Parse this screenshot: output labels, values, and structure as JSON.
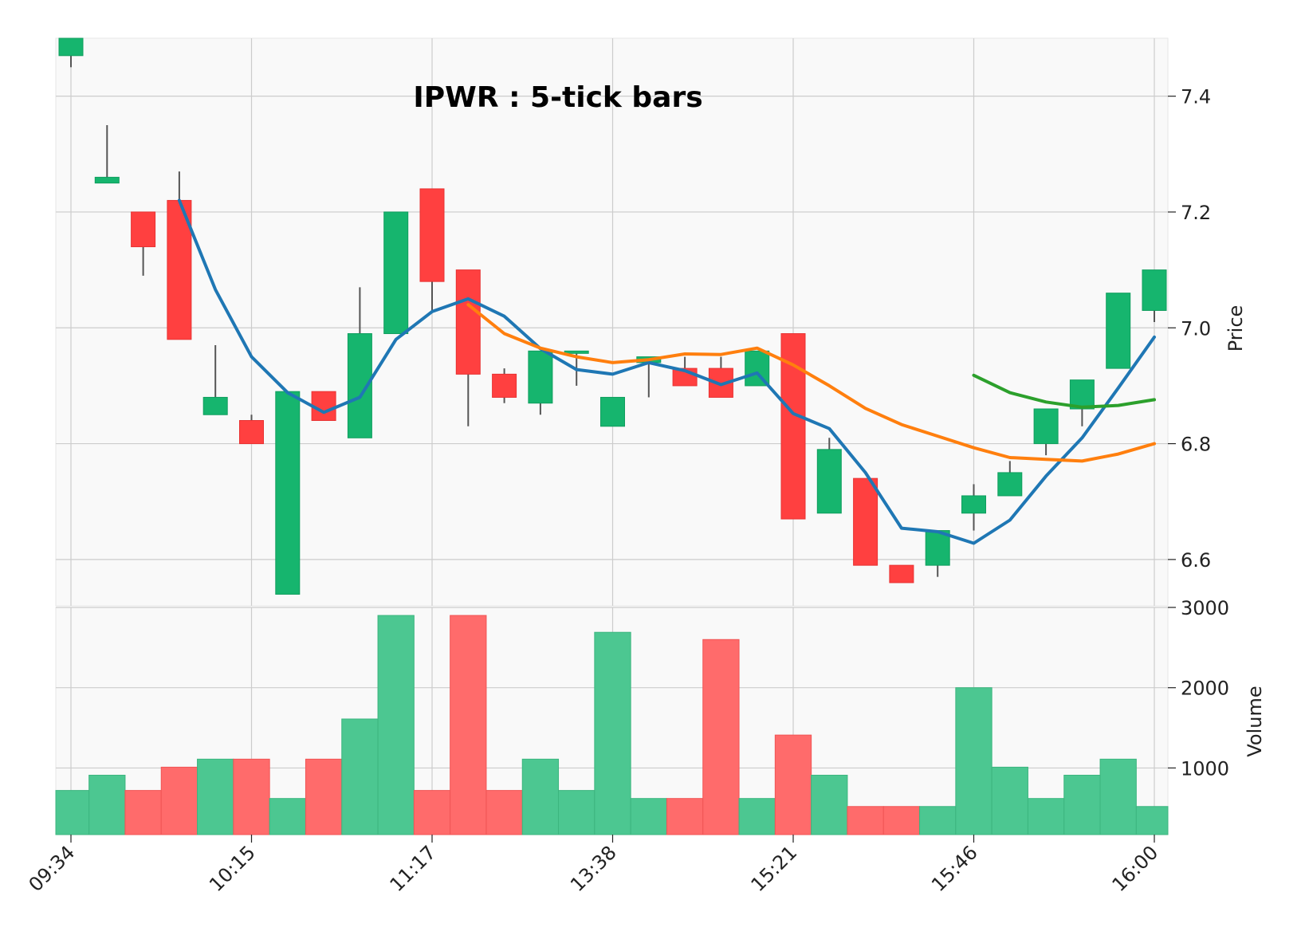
{
  "chart_data": {
    "type": "candlestick",
    "title": "IPWR : 5-tick bars",
    "x_tick_labels": [
      "09:34",
      "10:15",
      "11:17",
      "13:38",
      "15:21",
      "15:46",
      "16:00"
    ],
    "x_tick_bar_index": [
      0,
      5,
      10,
      15,
      20,
      25,
      30
    ],
    "price_axis": {
      "label": "Price",
      "ticks": [
        6.6,
        6.8,
        7.0,
        7.2,
        7.4
      ],
      "ylim": [
        6.52,
        7.5
      ]
    },
    "volume_axis": {
      "label": "Volume",
      "ticks": [
        1000,
        2000,
        3000
      ],
      "ylim": [
        170,
        3000
      ]
    },
    "colors": {
      "up": "#16b56e",
      "down": "#ff4040",
      "volume_up": "#4cc791",
      "volume_down": "#ff6b6b",
      "ma_short": "#1f77b4",
      "ma_mid": "#ff7f0e",
      "ma_long": "#2ca02c"
    },
    "bars": [
      {
        "o": 7.47,
        "h": 7.5,
        "l": 7.45,
        "c": 7.5,
        "v": 720
      },
      {
        "o": 7.25,
        "h": 7.35,
        "l": 7.25,
        "c": 7.26,
        "v": 910
      },
      {
        "o": 7.2,
        "h": 7.2,
        "l": 7.09,
        "c": 7.14,
        "v": 720
      },
      {
        "o": 7.22,
        "h": 7.27,
        "l": 6.98,
        "c": 6.98,
        "v": 1010
      },
      {
        "o": 6.85,
        "h": 6.97,
        "l": 6.85,
        "c": 6.88,
        "v": 1110
      },
      {
        "o": 6.84,
        "h": 6.85,
        "l": 6.8,
        "c": 6.8,
        "v": 1110
      },
      {
        "o": 6.54,
        "h": 6.89,
        "l": 6.54,
        "c": 6.89,
        "v": 620
      },
      {
        "o": 6.89,
        "h": 6.89,
        "l": 6.84,
        "c": 6.84,
        "v": 1110
      },
      {
        "o": 6.81,
        "h": 7.07,
        "l": 6.81,
        "c": 6.99,
        "v": 1610
      },
      {
        "o": 6.99,
        "h": 7.2,
        "l": 6.99,
        "c": 7.2,
        "v": 2900
      },
      {
        "o": 7.24,
        "h": 7.24,
        "l": 7.03,
        "c": 7.08,
        "v": 720
      },
      {
        "o": 7.1,
        "h": 7.1,
        "l": 6.83,
        "c": 6.92,
        "v": 2900
      },
      {
        "o": 6.92,
        "h": 6.93,
        "l": 6.87,
        "c": 6.88,
        "v": 720
      },
      {
        "o": 6.87,
        "h": 6.96,
        "l": 6.85,
        "c": 6.96,
        "v": 1110
      },
      {
        "o": 6.96,
        "h": 6.96,
        "l": 6.9,
        "c": 6.96,
        "v": 720
      },
      {
        "o": 6.83,
        "h": 6.88,
        "l": 6.83,
        "c": 6.88,
        "v": 2690
      },
      {
        "o": 6.94,
        "h": 6.95,
        "l": 6.88,
        "c": 6.95,
        "v": 620
      },
      {
        "o": 6.93,
        "h": 6.95,
        "l": 6.9,
        "c": 6.9,
        "v": 620
      },
      {
        "o": 6.93,
        "h": 6.95,
        "l": 6.88,
        "c": 6.88,
        "v": 2600
      },
      {
        "o": 6.9,
        "h": 6.96,
        "l": 6.9,
        "c": 6.96,
        "v": 620
      },
      {
        "o": 6.99,
        "h": 6.99,
        "l": 6.67,
        "c": 6.67,
        "v": 1410
      },
      {
        "o": 6.68,
        "h": 6.81,
        "l": 6.68,
        "c": 6.79,
        "v": 910
      },
      {
        "o": 6.74,
        "h": 6.74,
        "l": 6.59,
        "c": 6.59,
        "v": 520
      },
      {
        "o": 6.59,
        "h": 6.59,
        "l": 6.56,
        "c": 6.56,
        "v": 520
      },
      {
        "o": 6.59,
        "h": 6.65,
        "l": 6.57,
        "c": 6.65,
        "v": 520
      },
      {
        "o": 6.68,
        "h": 6.73,
        "l": 6.65,
        "c": 6.71,
        "v": 2000
      },
      {
        "o": 6.71,
        "h": 6.77,
        "l": 6.71,
        "c": 6.75,
        "v": 1010
      },
      {
        "o": 6.8,
        "h": 6.86,
        "l": 6.78,
        "c": 6.86,
        "v": 620
      },
      {
        "o": 6.86,
        "h": 6.91,
        "l": 6.83,
        "c": 6.91,
        "v": 910
      },
      {
        "o": 6.93,
        "h": 7.06,
        "l": 6.93,
        "c": 7.06,
        "v": 1110
      },
      {
        "o": 7.03,
        "h": 7.1,
        "l": 7.01,
        "c": 7.1,
        "v": 520
      }
    ],
    "moving_averages": [
      {
        "color": "#1f77b4",
        "start_index": 3,
        "values": [
          7.22,
          7.066,
          6.95,
          6.888,
          6.854,
          6.88,
          6.98,
          7.028,
          7.05,
          7.02,
          6.964,
          6.928,
          6.92,
          6.94,
          6.926,
          6.902,
          6.922,
          6.852,
          6.826,
          6.75,
          6.654,
          6.648,
          6.628,
          6.668,
          6.744,
          6.81,
          6.896,
          6.984
        ]
      },
      {
        "color": "#ff7f0e",
        "start_index": 11,
        "values": [
          7.04,
          6.99,
          6.965,
          6.95,
          6.94,
          6.945,
          6.955,
          6.954,
          6.965,
          6.936,
          6.9,
          6.861,
          6.833,
          6.813,
          6.793,
          6.776,
          6.773,
          6.77,
          6.782,
          6.8
        ]
      },
      {
        "color": "#2ca02c",
        "start_index": 25,
        "values": [
          6.918,
          6.888,
          6.872,
          6.863,
          6.866,
          6.876
        ]
      }
    ]
  }
}
